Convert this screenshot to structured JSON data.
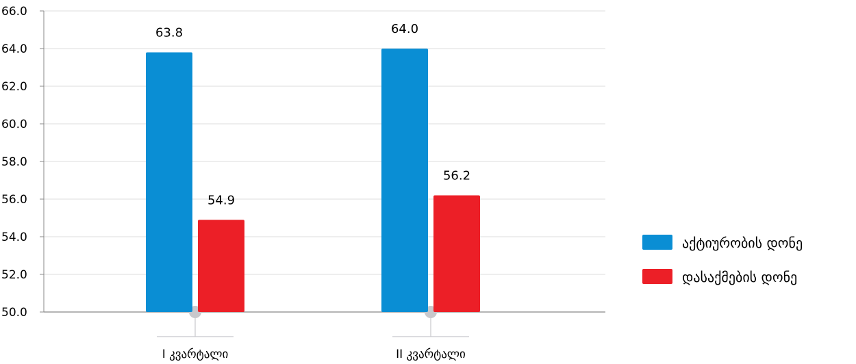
{
  "chart_data": {
    "type": "bar",
    "categories": [
      "I კვარტალი",
      "II კვარტალი"
    ],
    "series": [
      {
        "name": "აქტიურობის დონე",
        "values": [
          63.8,
          64.0
        ],
        "labels": [
          "63.8",
          "64.0"
        ],
        "color": "#0a8ed4"
      },
      {
        "name": "დასაქმების დონე",
        "values": [
          54.9,
          56.2
        ],
        "labels": [
          "54.9",
          "56.2"
        ],
        "color": "#ec1f27"
      }
    ],
    "ylim": [
      50.0,
      66.0
    ],
    "yticks": [
      "50.0",
      "52.0",
      "54.0",
      "56.0",
      "58.0",
      "60.0",
      "62.0",
      "64.0",
      "66.0"
    ],
    "grid": true,
    "legend_position": "right",
    "title": "",
    "xlabel": "",
    "ylabel": ""
  }
}
